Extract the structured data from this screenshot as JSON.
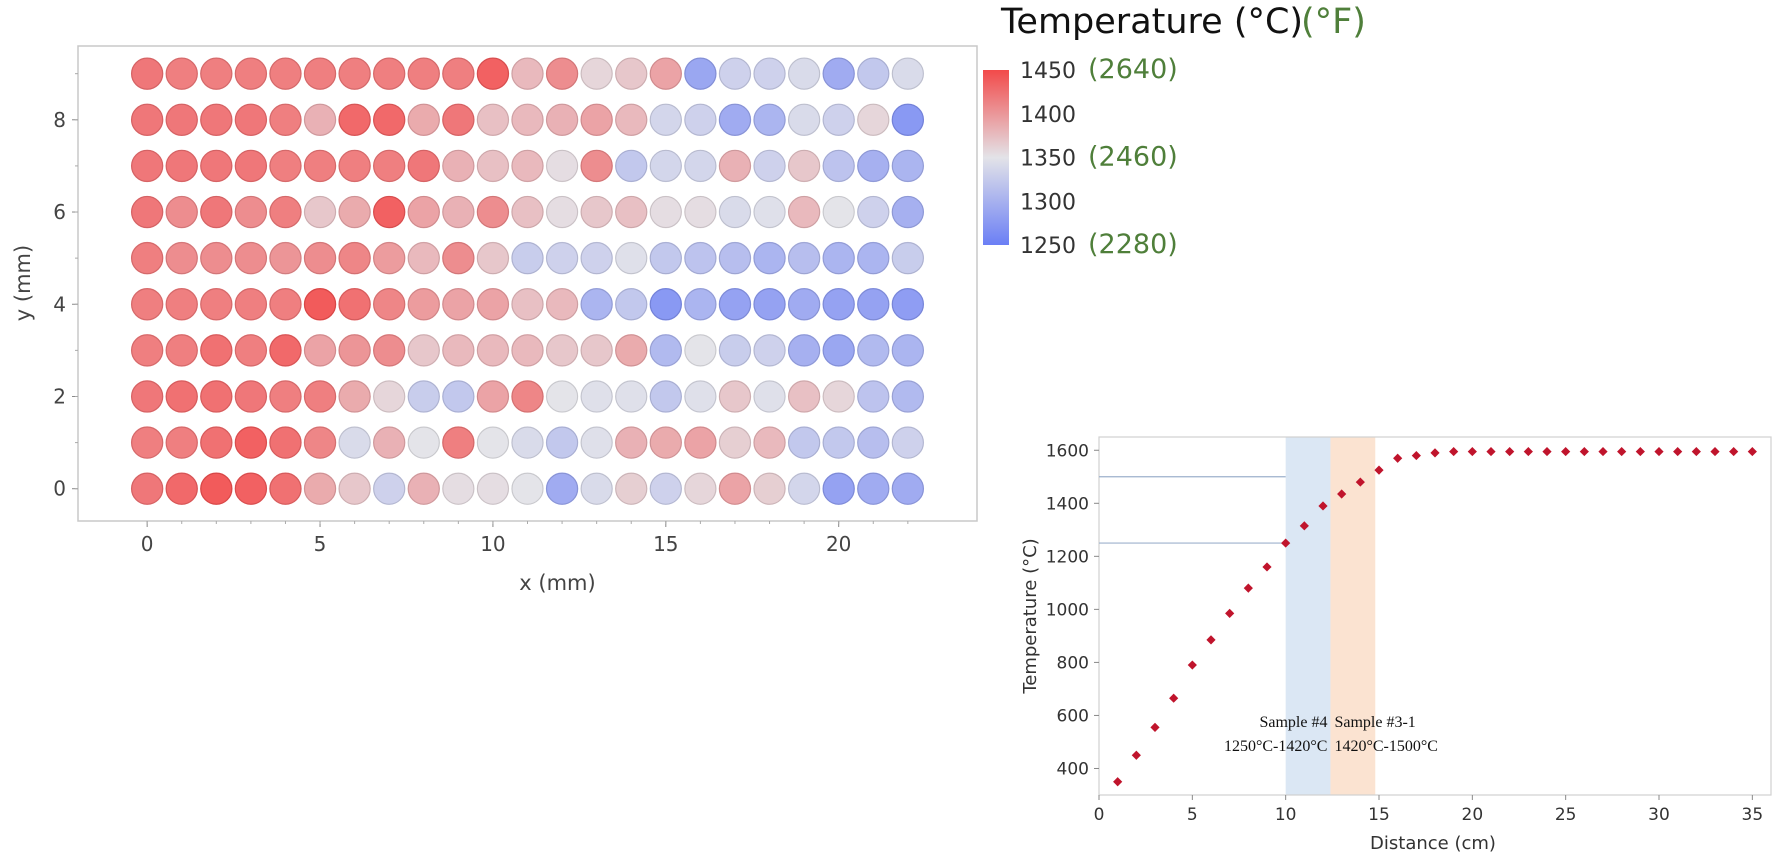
{
  "chart_data": [
    {
      "type": "heatmap",
      "xlabel": "x (mm)",
      "ylabel": "y (mm)",
      "xlim": [
        -2,
        24
      ],
      "ylim": [
        -0.7,
        9.6
      ],
      "xticks": [
        "0",
        "5",
        "10",
        "15",
        "20"
      ],
      "yticks": [
        "0",
        "2",
        "4",
        "6",
        "8"
      ],
      "x": [
        0,
        1,
        2,
        3,
        4,
        5,
        6,
        7,
        8,
        9,
        10,
        11,
        12,
        13,
        14,
        15,
        16,
        17,
        18,
        19,
        20,
        21,
        22
      ],
      "y": [
        0,
        1,
        2,
        3,
        4,
        5,
        6,
        7,
        8,
        9
      ],
      "values_rows_by_y": [
        [
          1425,
          1435,
          1445,
          1440,
          1430,
          1390,
          1370,
          1330,
          1385,
          1355,
          1355,
          1350,
          1290,
          1340,
          1365,
          1330,
          1360,
          1395,
          1365,
          1335,
          1280,
          1290,
          1290
        ],
        [
          1420,
          1420,
          1430,
          1440,
          1430,
          1415,
          1340,
          1385,
          1350,
          1420,
          1350,
          1340,
          1320,
          1345,
          1385,
          1390,
          1395,
          1365,
          1380,
          1320,
          1320,
          1310,
          1330
        ],
        [
          1425,
          1430,
          1430,
          1425,
          1420,
          1420,
          1390,
          1360,
          1325,
          1320,
          1395,
          1415,
          1350,
          1345,
          1345,
          1320,
          1345,
          1370,
          1345,
          1375,
          1360,
          1315,
          1305
        ],
        [
          1420,
          1420,
          1430,
          1420,
          1435,
          1395,
          1405,
          1410,
          1370,
          1380,
          1380,
          1380,
          1370,
          1370,
          1390,
          1305,
          1350,
          1325,
          1330,
          1295,
          1285,
          1305,
          1300
        ],
        [
          1420,
          1420,
          1420,
          1420,
          1420,
          1445,
          1430,
          1415,
          1400,
          1395,
          1395,
          1375,
          1380,
          1300,
          1320,
          1270,
          1300,
          1280,
          1280,
          1290,
          1280,
          1280,
          1275
        ],
        [
          1420,
          1410,
          1410,
          1410,
          1405,
          1410,
          1415,
          1400,
          1380,
          1410,
          1370,
          1325,
          1330,
          1330,
          1345,
          1320,
          1315,
          1310,
          1300,
          1310,
          1300,
          1300,
          1325
        ],
        [
          1425,
          1410,
          1425,
          1410,
          1420,
          1370,
          1390,
          1440,
          1395,
          1385,
          1410,
          1375,
          1355,
          1370,
          1375,
          1355,
          1355,
          1340,
          1345,
          1380,
          1350,
          1330,
          1295
        ],
        [
          1425,
          1425,
          1425,
          1425,
          1420,
          1420,
          1420,
          1420,
          1425,
          1385,
          1375,
          1380,
          1355,
          1410,
          1320,
          1335,
          1335,
          1385,
          1330,
          1370,
          1315,
          1295,
          1300
        ],
        [
          1425,
          1425,
          1425,
          1425,
          1420,
          1385,
          1435,
          1435,
          1390,
          1425,
          1375,
          1380,
          1385,
          1395,
          1380,
          1335,
          1330,
          1290,
          1300,
          1340,
          1330,
          1360,
          1270
        ],
        [
          1425,
          1420,
          1420,
          1420,
          1420,
          1420,
          1420,
          1420,
          1420,
          1420,
          1440,
          1380,
          1410,
          1360,
          1370,
          1395,
          1285,
          1330,
          1330,
          1340,
          1290,
          1320,
          1340
        ]
      ]
    },
    {
      "type": "scatter",
      "xlabel": "Distance (cm)",
      "ylabel": "Temperature (°C)",
      "xlim": [
        0,
        36
      ],
      "ylim": [
        300,
        1650
      ],
      "xticks": [
        "0",
        "5",
        "10",
        "15",
        "20",
        "25",
        "30",
        "35"
      ],
      "yticks": [
        "400",
        "600",
        "800",
        "1000",
        "1200",
        "1400",
        "1600"
      ],
      "series": [
        {
          "color": "#c0142c",
          "points": [
            [
              1,
              350
            ],
            [
              2,
              450
            ],
            [
              3,
              555
            ],
            [
              4,
              665
            ],
            [
              5,
              790
            ],
            [
              6,
              885
            ],
            [
              7,
              985
            ],
            [
              8,
              1080
            ],
            [
              9,
              1160
            ],
            [
              10,
              1250
            ],
            [
              11,
              1315
            ],
            [
              12,
              1390
            ],
            [
              13,
              1435
            ],
            [
              14,
              1480
            ],
            [
              15,
              1525
            ],
            [
              16,
              1570
            ],
            [
              17,
              1580
            ],
            [
              18,
              1590
            ],
            [
              19,
              1595
            ],
            [
              20,
              1595
            ],
            [
              21,
              1595
            ],
            [
              22,
              1595
            ],
            [
              23,
              1595
            ],
            [
              24,
              1595
            ],
            [
              25,
              1595
            ],
            [
              26,
              1595
            ],
            [
              27,
              1595
            ],
            [
              28,
              1595
            ],
            [
              29,
              1595
            ],
            [
              30,
              1595
            ],
            [
              31,
              1595
            ],
            [
              32,
              1595
            ],
            [
              33,
              1595
            ],
            [
              34,
              1595
            ],
            [
              35,
              1595
            ]
          ]
        }
      ],
      "hlines": [
        1500,
        1250
      ],
      "bands": [
        {
          "from": 10,
          "to": 12.4,
          "color": "#dbe7f4",
          "label1": "Sample #4",
          "label2": "1250°C-1420°C"
        },
        {
          "from": 12.4,
          "to": 14.8,
          "color": "#fbe3d1",
          "label1": "Sample #3-1",
          "label2": "1420°C-1500°C"
        }
      ]
    }
  ],
  "legend": {
    "title_c": "Temperature (°C)",
    "title_f": "(°F)",
    "title_f_color": "#4f7f3a",
    "ticks_c": [
      "1450",
      "1400",
      "1350",
      "1300",
      "1250"
    ],
    "ticks_f": [
      "(2640)",
      "(2460)",
      "(2280)"
    ],
    "scale_min": 1250,
    "scale_mid": 1350,
    "scale_max": 1450,
    "color_low": "#6b7ff5",
    "color_mid": "#e3e3e8",
    "color_high": "#f24a4a"
  }
}
